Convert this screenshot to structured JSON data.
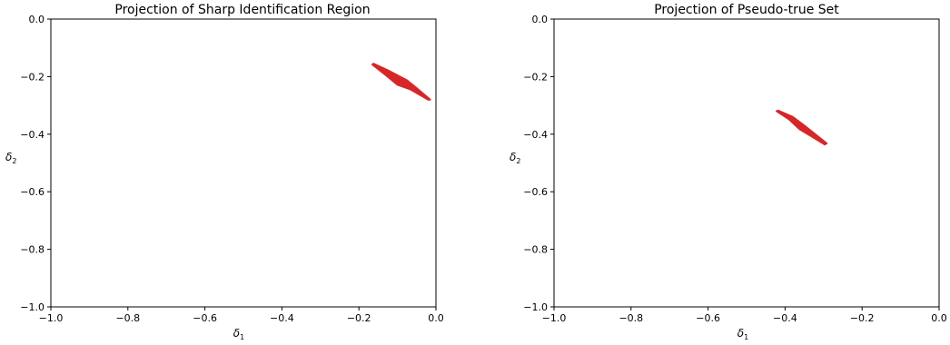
{
  "chart_data": [
    {
      "type": "area",
      "title": "Projection of Sharp Identification Region",
      "xlabel": "δ",
      "xlabel_sub": "1",
      "ylabel": "δ",
      "ylabel_sub": "2",
      "xlim": [
        -1.0,
        0.0
      ],
      "ylim": [
        -1.0,
        0.0
      ],
      "xticks": [
        "−1.0",
        "−0.8",
        "−0.6",
        "−0.4",
        "−0.2",
        "0.0"
      ],
      "yticks": [
        "0.0",
        "−0.2",
        "−0.4",
        "−0.6",
        "−0.8",
        "−1.0"
      ],
      "grid": false,
      "color": "#d62728",
      "region": [
        [
          -0.162,
          -0.155
        ],
        [
          -0.125,
          -0.178
        ],
        [
          -0.075,
          -0.213
        ],
        [
          -0.05,
          -0.24
        ],
        [
          -0.015,
          -0.28
        ],
        [
          -0.02,
          -0.28
        ],
        [
          -0.065,
          -0.245
        ],
        [
          -0.1,
          -0.228
        ],
        [
          -0.13,
          -0.195
        ],
        [
          -0.165,
          -0.158
        ]
      ]
    },
    {
      "type": "area",
      "title": "Projection of Pseudo-true Set",
      "xlabel": "δ",
      "xlabel_sub": "1",
      "ylabel": "δ",
      "ylabel_sub": "2",
      "xlim": [
        -1.0,
        0.0
      ],
      "ylim": [
        -1.0,
        0.0
      ],
      "xticks": [
        "−1.0",
        "−0.8",
        "−0.6",
        "−0.4",
        "−0.2",
        "0.0"
      ],
      "yticks": [
        "0.0",
        "−0.2",
        "−0.4",
        "−0.6",
        "−0.8",
        "−1.0"
      ],
      "grid": false,
      "color": "#d62728",
      "region": [
        [
          -0.418,
          -0.318
        ],
        [
          -0.38,
          -0.34
        ],
        [
          -0.35,
          -0.37
        ],
        [
          -0.322,
          -0.4
        ],
        [
          -0.292,
          -0.432
        ],
        [
          -0.297,
          -0.436
        ],
        [
          -0.328,
          -0.41
        ],
        [
          -0.362,
          -0.383
        ],
        [
          -0.39,
          -0.348
        ],
        [
          -0.422,
          -0.32
        ]
      ]
    }
  ]
}
